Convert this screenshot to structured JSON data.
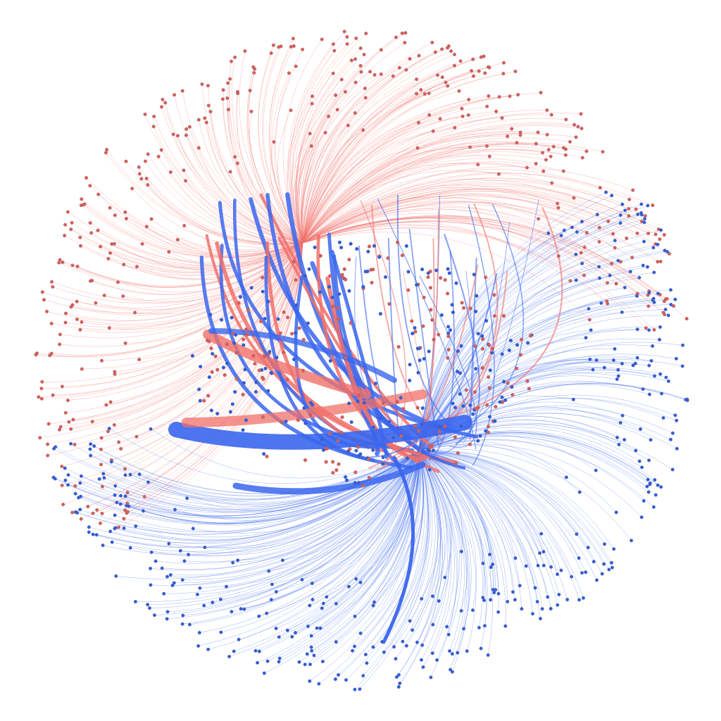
{
  "diagram": {
    "type": "network-graph",
    "layout": "radial-fan",
    "background": "#ffffff",
    "node_stroke": "#6b7280",
    "groups": [
      {
        "key": "red",
        "node_color": "#e05a55",
        "edge_color": "#f0706a",
        "hub_node_count": 380
      },
      {
        "key": "blue",
        "node_color": "#2f5be0",
        "edge_color": "#3a66ee",
        "hub_node_count": 380
      }
    ],
    "cluster": {
      "node_count": 320,
      "bundle_edge_count": 46,
      "thick_edge_count": 20
    }
  }
}
